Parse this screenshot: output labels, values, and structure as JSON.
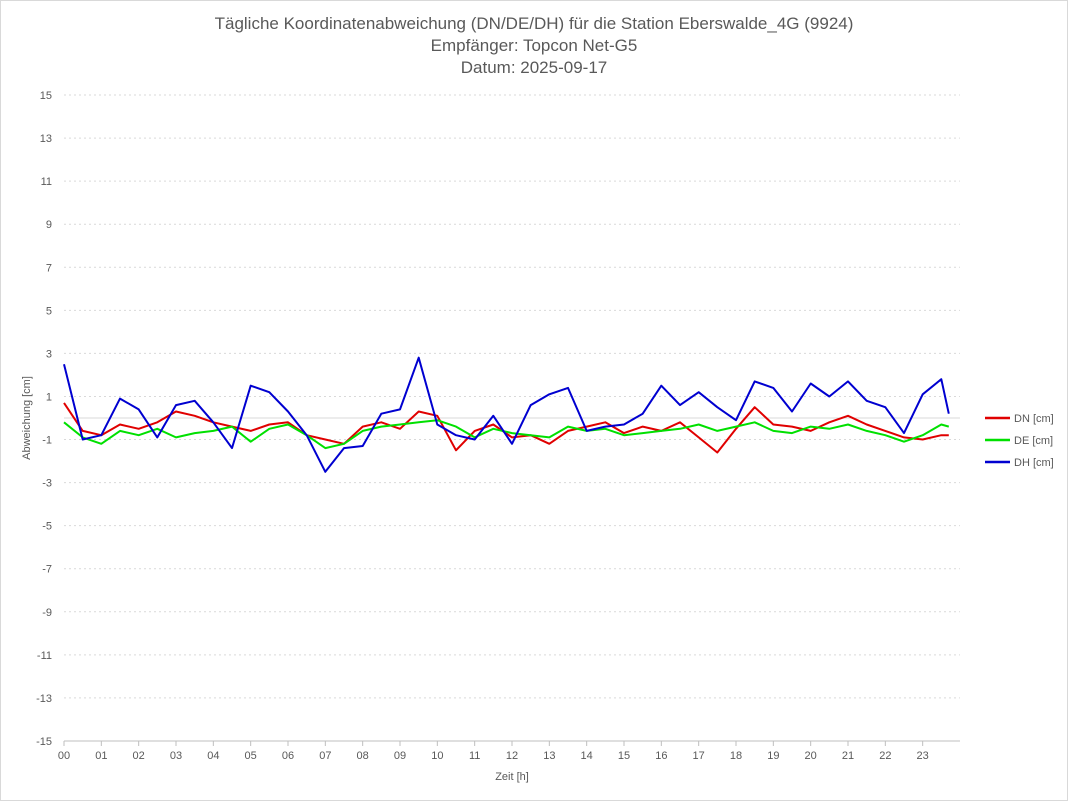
{
  "chart_data": {
    "type": "line",
    "title_lines": [
      "Tägliche Koordinatenabweichung (DN/DE/DH) für die Station Eberswalde_4G (9924)",
      "Empfänger: Topcon Net-G5",
      "Datum: 2025-09-17"
    ],
    "xlabel": "Zeit [h]",
    "ylabel": "Abweichung [cm]",
    "xlim": [
      0,
      24
    ],
    "ylim": [
      -15,
      15
    ],
    "y_ticks": [
      "15",
      "13",
      "11",
      "9",
      "7",
      "5",
      "3",
      "1",
      "-1",
      "-3",
      "-5",
      "-7",
      "-9",
      "-11",
      "-13",
      "-15"
    ],
    "x_ticks": [
      "00",
      "01",
      "02",
      "03",
      "04",
      "05",
      "06",
      "07",
      "08",
      "09",
      "10",
      "11",
      "12",
      "13",
      "14",
      "15",
      "16",
      "17",
      "18",
      "19",
      "20",
      "21",
      "22",
      "23"
    ],
    "legend_position": "right",
    "series": [
      {
        "name": "DN [cm]",
        "color": "#e00000",
        "x": [
          0,
          0.5,
          1,
          1.5,
          2,
          2.5,
          3,
          3.5,
          4,
          4.5,
          5,
          5.5,
          6,
          6.5,
          7,
          7.5,
          8,
          8.5,
          9,
          9.5,
          10,
          10.5,
          11,
          11.5,
          12,
          12.5,
          13,
          13.5,
          14,
          14.5,
          15,
          15.5,
          16,
          16.5,
          17,
          17.5,
          18,
          18.5,
          19,
          19.5,
          20,
          20.5,
          21,
          21.5,
          22,
          22.5,
          23,
          23.5,
          23.7
        ],
        "values": [
          0.7,
          -0.6,
          -0.8,
          -0.3,
          -0.5,
          -0.2,
          0.3,
          0.1,
          -0.2,
          -0.4,
          -0.6,
          -0.3,
          -0.2,
          -0.8,
          -1.0,
          -1.2,
          -0.4,
          -0.2,
          -0.5,
          0.3,
          0.1,
          -1.5,
          -0.6,
          -0.3,
          -0.9,
          -0.8,
          -1.2,
          -0.6,
          -0.4,
          -0.2,
          -0.7,
          -0.4,
          -0.6,
          -0.2,
          -0.9,
          -1.6,
          -0.5,
          0.5,
          -0.3,
          -0.4,
          -0.6,
          -0.2,
          0.1,
          -0.3,
          -0.6,
          -0.9,
          -1.0,
          -0.8,
          -0.8
        ]
      },
      {
        "name": "DE [cm]",
        "color": "#00e000",
        "x": [
          0,
          0.5,
          1,
          1.5,
          2,
          2.5,
          3,
          3.5,
          4,
          4.5,
          5,
          5.5,
          6,
          6.5,
          7,
          7.5,
          8,
          8.5,
          9,
          9.5,
          10,
          10.5,
          11,
          11.5,
          12,
          12.5,
          13,
          13.5,
          14,
          14.5,
          15,
          15.5,
          16,
          16.5,
          17,
          17.5,
          18,
          18.5,
          19,
          19.5,
          20,
          20.5,
          21,
          21.5,
          22,
          22.5,
          23,
          23.5,
          23.7
        ],
        "values": [
          -0.2,
          -0.9,
          -1.2,
          -0.6,
          -0.8,
          -0.5,
          -0.9,
          -0.7,
          -0.6,
          -0.4,
          -1.1,
          -0.5,
          -0.3,
          -0.8,
          -1.4,
          -1.2,
          -0.6,
          -0.4,
          -0.3,
          -0.2,
          -0.1,
          -0.4,
          -0.9,
          -0.5,
          -0.7,
          -0.8,
          -0.9,
          -0.4,
          -0.6,
          -0.5,
          -0.8,
          -0.7,
          -0.6,
          -0.5,
          -0.3,
          -0.6,
          -0.4,
          -0.2,
          -0.6,
          -0.7,
          -0.4,
          -0.5,
          -0.3,
          -0.6,
          -0.8,
          -1.1,
          -0.8,
          -0.3,
          -0.4
        ]
      },
      {
        "name": "DH [cm]",
        "color": "#0000d0",
        "x": [
          0,
          0.5,
          1,
          1.5,
          2,
          2.5,
          3,
          3.5,
          4,
          4.5,
          5,
          5.5,
          6,
          6.5,
          7,
          7.5,
          8,
          8.5,
          9,
          9.5,
          10,
          10.5,
          11,
          11.5,
          12,
          12.5,
          13,
          13.5,
          14,
          14.5,
          15,
          15.5,
          16,
          16.5,
          17,
          17.5,
          18,
          18.5,
          19,
          19.5,
          20,
          20.5,
          21,
          21.5,
          22,
          22.5,
          23,
          23.5,
          23.7
        ],
        "values": [
          2.5,
          -1.0,
          -0.8,
          0.9,
          0.4,
          -0.9,
          0.6,
          0.8,
          -0.2,
          -1.4,
          1.5,
          1.2,
          0.3,
          -0.8,
          -2.5,
          -1.4,
          -1.3,
          0.2,
          0.4,
          2.8,
          -0.3,
          -0.8,
          -1.0,
          0.1,
          -1.2,
          0.6,
          1.1,
          1.4,
          -0.6,
          -0.4,
          -0.3,
          0.2,
          1.5,
          0.6,
          1.2,
          0.5,
          -0.1,
          1.7,
          1.4,
          0.3,
          1.6,
          1.0,
          1.7,
          0.8,
          0.5,
          -0.7,
          1.1,
          1.8,
          0.2
        ]
      }
    ]
  }
}
